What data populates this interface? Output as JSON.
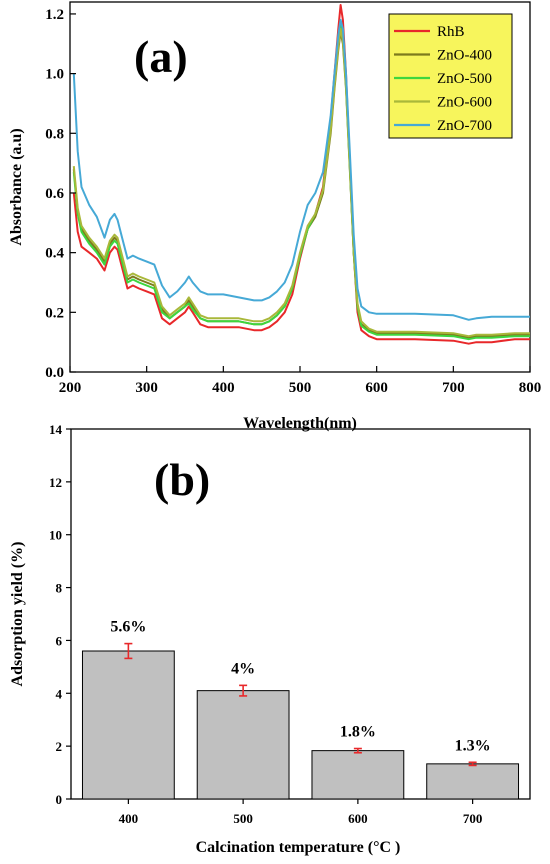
{
  "chart_data": [
    {
      "type": "line",
      "panel_label": "(a)",
      "xlabel": "Wavelength(nm)",
      "ylabel": "Absorbance  (a.u)",
      "xlim": [
        200,
        800
      ],
      "ylim": [
        0.0,
        1.24
      ],
      "xticks": [
        "200",
        "300",
        "400",
        "500",
        "600",
        "700",
        "800"
      ],
      "yticks": [
        "0.0",
        "0.2",
        "0.4",
        "0.6",
        "0.8",
        "1.0",
        "1.2"
      ],
      "grid": false,
      "legend": {
        "placement": "top-right",
        "entries": [
          "RhB",
          "ZnO-400",
          "ZnO-500",
          "ZnO-600",
          "ZnO-700"
        ]
      },
      "series": [
        {
          "name": "RhB",
          "color": "#e8282a",
          "x": [
            205,
            210,
            215,
            225,
            235,
            245,
            252,
            258,
            262,
            268,
            275,
            282,
            290,
            300,
            310,
            320,
            330,
            340,
            350,
            355,
            360,
            370,
            380,
            400,
            420,
            440,
            450,
            460,
            470,
            480,
            490,
            500,
            510,
            520,
            530,
            540,
            545,
            550,
            553,
            556,
            560,
            565,
            570,
            575,
            580,
            590,
            600,
            650,
            700,
            720,
            730,
            750,
            780,
            800
          ],
          "y": [
            0.6,
            0.47,
            0.42,
            0.4,
            0.38,
            0.34,
            0.4,
            0.42,
            0.41,
            0.35,
            0.28,
            0.29,
            0.28,
            0.27,
            0.26,
            0.18,
            0.16,
            0.18,
            0.2,
            0.22,
            0.2,
            0.16,
            0.15,
            0.15,
            0.15,
            0.14,
            0.14,
            0.15,
            0.17,
            0.2,
            0.26,
            0.38,
            0.48,
            0.53,
            0.62,
            0.85,
            1.0,
            1.15,
            1.23,
            1.18,
            1.0,
            0.7,
            0.4,
            0.2,
            0.14,
            0.12,
            0.11,
            0.11,
            0.105,
            0.095,
            0.1,
            0.1,
            0.11,
            0.11
          ]
        },
        {
          "name": "ZnO-400",
          "color": "#7d7a1c",
          "x": [
            205,
            210,
            215,
            225,
            235,
            245,
            252,
            258,
            262,
            268,
            275,
            282,
            290,
            300,
            310,
            320,
            330,
            340,
            350,
            355,
            360,
            370,
            380,
            400,
            420,
            440,
            450,
            460,
            470,
            480,
            490,
            500,
            510,
            520,
            530,
            540,
            545,
            550,
            553,
            556,
            560,
            565,
            570,
            575,
            580,
            590,
            600,
            650,
            700,
            720,
            730,
            750,
            780,
            800
          ],
          "y": [
            0.68,
            0.54,
            0.48,
            0.44,
            0.41,
            0.37,
            0.43,
            0.45,
            0.44,
            0.38,
            0.31,
            0.32,
            0.31,
            0.3,
            0.29,
            0.21,
            0.18,
            0.2,
            0.22,
            0.24,
            0.22,
            0.18,
            0.17,
            0.17,
            0.17,
            0.16,
            0.16,
            0.17,
            0.19,
            0.22,
            0.28,
            0.39,
            0.48,
            0.52,
            0.6,
            0.8,
            0.95,
            1.08,
            1.14,
            1.1,
            0.95,
            0.68,
            0.4,
            0.22,
            0.16,
            0.14,
            0.13,
            0.13,
            0.125,
            0.115,
            0.12,
            0.12,
            0.125,
            0.125
          ]
        },
        {
          "name": "ZnO-500",
          "color": "#3ed63e",
          "x": [
            205,
            210,
            215,
            225,
            235,
            245,
            252,
            258,
            262,
            268,
            275,
            282,
            290,
            300,
            310,
            320,
            330,
            340,
            350,
            355,
            360,
            370,
            380,
            400,
            420,
            440,
            450,
            460,
            470,
            480,
            490,
            500,
            510,
            520,
            530,
            540,
            545,
            550,
            553,
            556,
            560,
            565,
            570,
            575,
            580,
            590,
            600,
            650,
            700,
            720,
            730,
            750,
            780,
            800
          ],
          "y": [
            0.67,
            0.53,
            0.47,
            0.43,
            0.4,
            0.36,
            0.42,
            0.44,
            0.43,
            0.37,
            0.3,
            0.31,
            0.3,
            0.29,
            0.28,
            0.2,
            0.18,
            0.2,
            0.22,
            0.23,
            0.21,
            0.18,
            0.17,
            0.17,
            0.17,
            0.16,
            0.16,
            0.17,
            0.19,
            0.22,
            0.28,
            0.39,
            0.48,
            0.53,
            0.61,
            0.82,
            0.97,
            1.1,
            1.16,
            1.12,
            0.96,
            0.69,
            0.4,
            0.22,
            0.155,
            0.135,
            0.125,
            0.125,
            0.12,
            0.11,
            0.115,
            0.115,
            0.12,
            0.12
          ]
        },
        {
          "name": "ZnO-600",
          "color": "#a9b83a",
          "x": [
            205,
            210,
            215,
            225,
            235,
            245,
            252,
            258,
            262,
            268,
            275,
            282,
            290,
            300,
            310,
            320,
            330,
            340,
            350,
            355,
            360,
            370,
            380,
            400,
            420,
            440,
            450,
            460,
            470,
            480,
            490,
            500,
            510,
            520,
            530,
            540,
            545,
            550,
            553,
            556,
            560,
            565,
            570,
            575,
            580,
            590,
            600,
            650,
            700,
            720,
            730,
            750,
            780,
            800
          ],
          "y": [
            0.69,
            0.55,
            0.49,
            0.45,
            0.42,
            0.38,
            0.44,
            0.46,
            0.45,
            0.39,
            0.32,
            0.33,
            0.32,
            0.31,
            0.3,
            0.22,
            0.19,
            0.21,
            0.23,
            0.25,
            0.23,
            0.19,
            0.18,
            0.18,
            0.18,
            0.17,
            0.17,
            0.18,
            0.2,
            0.23,
            0.29,
            0.4,
            0.49,
            0.53,
            0.61,
            0.81,
            0.96,
            1.09,
            1.15,
            1.11,
            0.96,
            0.69,
            0.41,
            0.23,
            0.17,
            0.145,
            0.135,
            0.135,
            0.13,
            0.12,
            0.125,
            0.125,
            0.13,
            0.13
          ]
        },
        {
          "name": "ZnO-700",
          "color": "#46a9d6",
          "x": [
            205,
            210,
            215,
            225,
            235,
            245,
            252,
            258,
            262,
            268,
            275,
            282,
            290,
            300,
            310,
            320,
            330,
            340,
            350,
            355,
            360,
            370,
            380,
            400,
            420,
            440,
            450,
            460,
            470,
            480,
            490,
            500,
            510,
            520,
            530,
            540,
            545,
            550,
            553,
            556,
            560,
            565,
            570,
            575,
            580,
            590,
            600,
            650,
            700,
            720,
            730,
            750,
            780,
            800
          ],
          "y": [
            1.0,
            0.74,
            0.62,
            0.56,
            0.52,
            0.45,
            0.51,
            0.53,
            0.51,
            0.45,
            0.38,
            0.39,
            0.38,
            0.37,
            0.36,
            0.29,
            0.25,
            0.27,
            0.3,
            0.32,
            0.3,
            0.27,
            0.26,
            0.26,
            0.25,
            0.24,
            0.24,
            0.25,
            0.27,
            0.3,
            0.36,
            0.47,
            0.56,
            0.6,
            0.67,
            0.86,
            1.0,
            1.13,
            1.18,
            1.15,
            1.0,
            0.74,
            0.46,
            0.28,
            0.22,
            0.2,
            0.195,
            0.195,
            0.19,
            0.175,
            0.18,
            0.185,
            0.185,
            0.185
          ]
        }
      ]
    },
    {
      "type": "bar",
      "panel_label": "(b)",
      "xlabel": "Calcination temperature (°C )",
      "ylabel": "Adsorption yield (%)",
      "ylim": [
        0,
        14
      ],
      "yticks": [
        "0",
        "2",
        "4",
        "6",
        "8",
        "10",
        "12",
        "14"
      ],
      "grid": false,
      "categories": [
        "400",
        "500",
        "600",
        "700"
      ],
      "values": [
        5.6,
        4.1,
        1.83,
        1.33
      ],
      "errors": [
        0.28,
        0.2,
        0.08,
        0.06
      ],
      "data_labels": [
        "5.6%",
        "4%",
        "1.8%",
        "1.3%"
      ],
      "bar_color": "#c0c0c0",
      "error_color": "#e8282a"
    }
  ]
}
